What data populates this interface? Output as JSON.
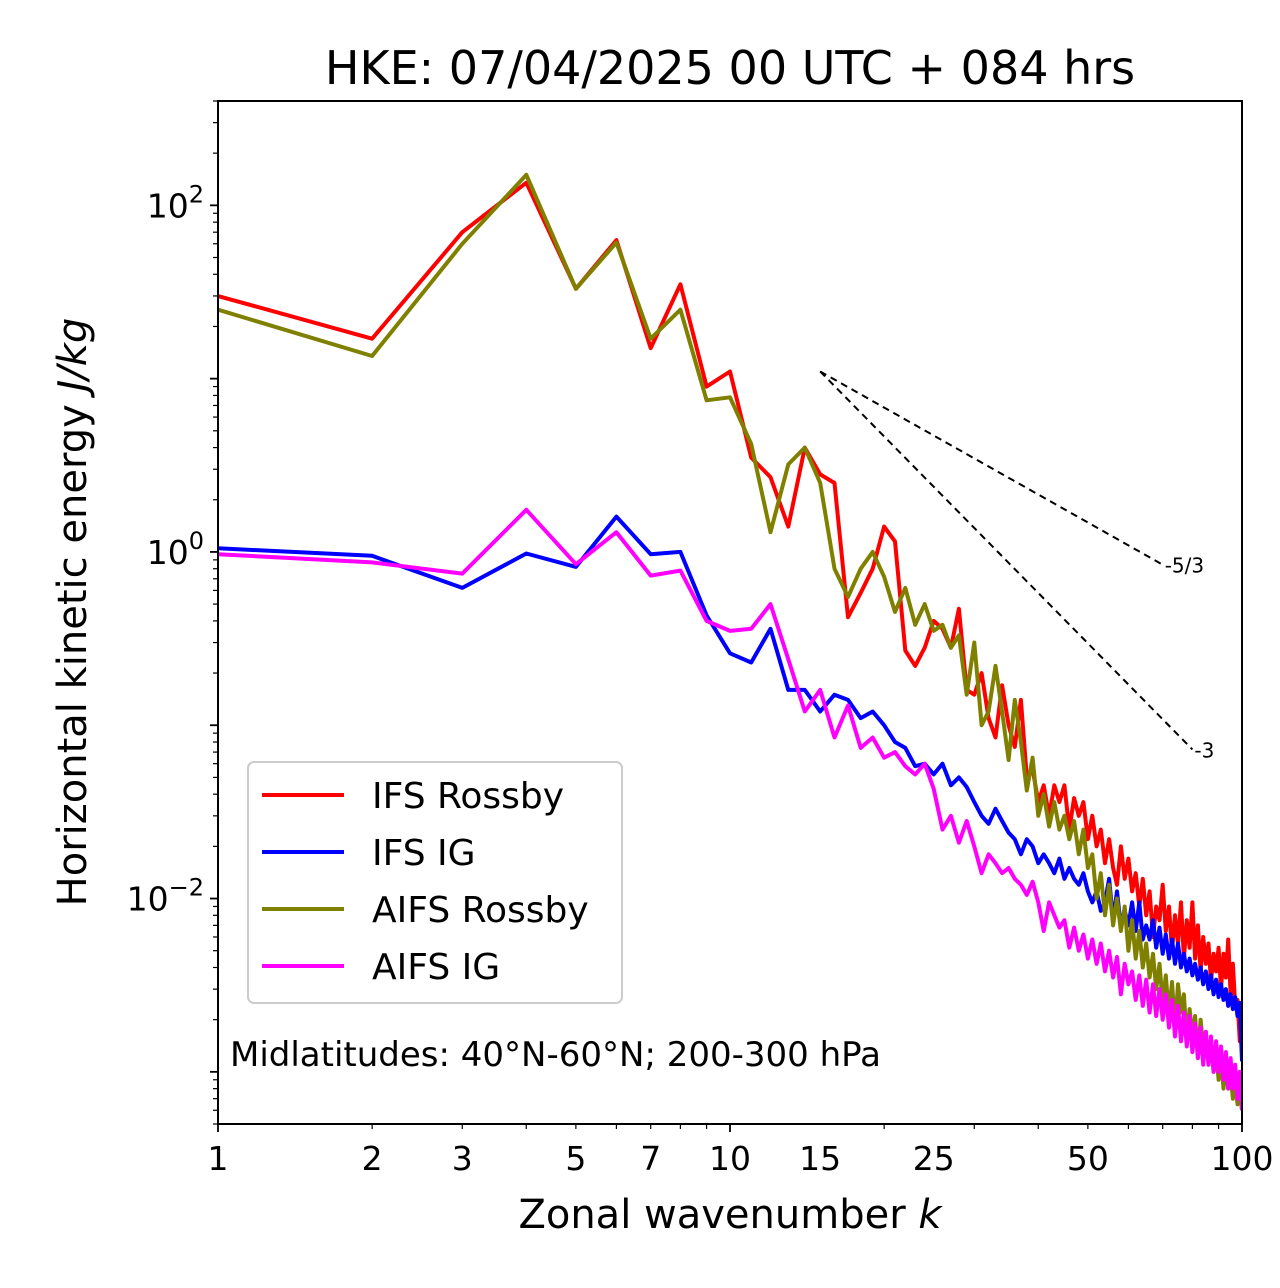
{
  "chart_data": {
    "type": "line",
    "title": "HKE: 07/04/2025 00 UTC + 084 hrs",
    "xlabel_text": "Zonal wavenumber ",
    "xlabel_var": "k",
    "ylabel_text": "Horizontal kinetic energy ",
    "ylabel_unit": "J/kg",
    "xscale": "log",
    "yscale": "log",
    "xlim": [
      1,
      100
    ],
    "ylim": [
      0.0005,
      400
    ],
    "x_ticks": [
      1,
      2,
      3,
      5,
      7,
      10,
      15,
      25,
      50,
      100
    ],
    "x_tick_labels": [
      "1",
      "2",
      "3",
      "5",
      "7",
      "10",
      "15",
      "25",
      "50",
      "100"
    ],
    "y_ticks": [
      {
        "value": 100,
        "base": "10",
        "exp": "2"
      },
      {
        "value": 1,
        "base": "10",
        "exp": "0"
      },
      {
        "value": 0.01,
        "base": "10",
        "exp": "−2"
      }
    ],
    "grid": false,
    "legend_position": "lower-left",
    "annotation": "Midlatitudes: 40°N-60°N; 200-300 hPa",
    "reference_slopes": [
      {
        "label": "-5/3",
        "slope": -1.6667,
        "x_start": 15,
        "y_start": 11,
        "x_end": 70
      },
      {
        "label": "-3",
        "slope": -3,
        "x_start": 15,
        "y_start": 11,
        "x_end": 80
      }
    ],
    "series": [
      {
        "name": "IFS Rossby",
        "color": "#ff0000",
        "x": [
          1,
          2,
          3,
          4,
          5,
          6,
          7,
          8,
          9,
          10,
          11,
          12,
          13,
          14,
          15,
          16,
          17,
          18,
          19,
          20,
          21,
          22,
          23,
          24,
          25,
          26,
          27,
          28,
          29,
          30,
          31,
          32,
          33,
          34,
          35,
          36,
          37,
          38,
          39,
          40,
          41,
          42,
          43,
          44,
          45,
          46,
          47,
          48,
          49,
          50,
          51,
          52,
          53,
          54,
          55,
          56,
          57,
          58,
          59,
          60,
          61,
          62,
          63,
          64,
          65,
          66,
          67,
          68,
          69,
          70,
          71,
          72,
          73,
          74,
          75,
          76,
          77,
          78,
          79,
          80,
          81,
          82,
          83,
          84,
          85,
          86,
          87,
          88,
          89,
          90,
          91,
          92,
          93,
          94,
          95,
          96,
          97,
          98,
          99,
          100
        ],
        "y": [
          30,
          17,
          70,
          135,
          33,
          63,
          15,
          35,
          9,
          11,
          3.5,
          2.7,
          1.4,
          4,
          2.8,
          2.5,
          0.42,
          0.58,
          0.8,
          1.4,
          1.15,
          0.27,
          0.22,
          0.28,
          0.4,
          0.36,
          0.28,
          0.47,
          0.16,
          0.15,
          0.2,
          0.11,
          0.085,
          0.17,
          0.1,
          0.075,
          0.14,
          0.05,
          0.056,
          0.036,
          0.045,
          0.03,
          0.045,
          0.036,
          0.045,
          0.025,
          0.038,
          0.03,
          0.036,
          0.022,
          0.03,
          0.02,
          0.025,
          0.016,
          0.022,
          0.015,
          0.012,
          0.02,
          0.013,
          0.017,
          0.011,
          0.014,
          0.009,
          0.013,
          0.008,
          0.011,
          0.006,
          0.009,
          0.0075,
          0.012,
          0.0065,
          0.009,
          0.005,
          0.008,
          0.0055,
          0.0095,
          0.0045,
          0.0075,
          0.0052,
          0.0095,
          0.0045,
          0.007,
          0.0038,
          0.006,
          0.0042,
          0.0055,
          0.0033,
          0.0048,
          0.0038,
          0.0052,
          0.003,
          0.0048,
          0.0035,
          0.0058,
          0.0028,
          0.0042,
          0.0024,
          0.0026,
          0.0015,
          0.0022
        ]
      },
      {
        "name": "IFS IG",
        "color": "#0000ff",
        "x": [
          1,
          2,
          3,
          4,
          5,
          6,
          7,
          8,
          9,
          10,
          11,
          12,
          13,
          14,
          15,
          16,
          17,
          18,
          19,
          20,
          21,
          22,
          23,
          24,
          25,
          26,
          27,
          28,
          29,
          30,
          31,
          32,
          33,
          34,
          35,
          36,
          37,
          38,
          39,
          40,
          41,
          42,
          43,
          44,
          45,
          46,
          47,
          48,
          49,
          50,
          51,
          52,
          53,
          54,
          55,
          56,
          57,
          58,
          59,
          60,
          61,
          62,
          63,
          64,
          65,
          66,
          67,
          68,
          69,
          70,
          71,
          72,
          73,
          74,
          75,
          76,
          77,
          78,
          79,
          80,
          81,
          82,
          83,
          84,
          85,
          86,
          87,
          88,
          89,
          90,
          91,
          92,
          93,
          94,
          95,
          96,
          97,
          98,
          99,
          100
        ],
        "y": [
          1.05,
          0.95,
          0.62,
          0.98,
          0.82,
          1.6,
          0.97,
          1.0,
          0.43,
          0.26,
          0.23,
          0.36,
          0.16,
          0.16,
          0.12,
          0.15,
          0.14,
          0.11,
          0.12,
          0.1,
          0.08,
          0.074,
          0.058,
          0.06,
          0.052,
          0.06,
          0.045,
          0.05,
          0.044,
          0.036,
          0.03,
          0.027,
          0.033,
          0.028,
          0.024,
          0.022,
          0.018,
          0.022,
          0.02,
          0.016,
          0.018,
          0.016,
          0.014,
          0.017,
          0.013,
          0.015,
          0.013,
          0.012,
          0.014,
          0.011,
          0.0095,
          0.011,
          0.0085,
          0.0095,
          0.013,
          0.0075,
          0.011,
          0.0068,
          0.0085,
          0.007,
          0.0095,
          0.0065,
          0.0095,
          0.0058,
          0.007,
          0.0058,
          0.0075,
          0.0052,
          0.0068,
          0.0048,
          0.0062,
          0.0045,
          0.0058,
          0.0042,
          0.0055,
          0.004,
          0.0048,
          0.0038,
          0.0045,
          0.0036,
          0.0042,
          0.0034,
          0.004,
          0.0032,
          0.0038,
          0.003,
          0.0036,
          0.0028,
          0.0034,
          0.0027,
          0.0032,
          0.0026,
          0.003,
          0.0024,
          0.0028,
          0.0023,
          0.0027,
          0.0021,
          0.0025,
          0.00115
        ]
      },
      {
        "name": "AIFS Rossby",
        "color": "#808000",
        "x": [
          1,
          2,
          3,
          4,
          5,
          6,
          7,
          8,
          9,
          10,
          11,
          12,
          13,
          14,
          15,
          16,
          17,
          18,
          19,
          20,
          21,
          22,
          23,
          24,
          25,
          26,
          27,
          28,
          29,
          30,
          31,
          32,
          33,
          34,
          35,
          36,
          37,
          38,
          39,
          40,
          41,
          42,
          43,
          44,
          45,
          46,
          47,
          48,
          49,
          50,
          51,
          52,
          53,
          54,
          55,
          56,
          57,
          58,
          59,
          60,
          61,
          62,
          63,
          64,
          65,
          66,
          67,
          68,
          69,
          70,
          71,
          72,
          73,
          74,
          75,
          76,
          77,
          78,
          79,
          80,
          81,
          82,
          83,
          84,
          85,
          86,
          87,
          88,
          89,
          90,
          91,
          92,
          93,
          94,
          95,
          96,
          97,
          98,
          99,
          100
        ],
        "y": [
          25,
          13.5,
          60,
          150,
          33,
          61,
          17,
          25,
          7.5,
          7.8,
          4.2,
          1.3,
          3.2,
          4,
          2.5,
          0.8,
          0.55,
          0.8,
          1,
          0.72,
          0.45,
          0.62,
          0.38,
          0.5,
          0.35,
          0.38,
          0.28,
          0.33,
          0.15,
          0.3,
          0.1,
          0.12,
          0.22,
          0.12,
          0.063,
          0.14,
          0.08,
          0.042,
          0.065,
          0.03,
          0.04,
          0.026,
          0.036,
          0.025,
          0.03,
          0.022,
          0.028,
          0.018,
          0.025,
          0.015,
          0.018,
          0.01,
          0.014,
          0.008,
          0.012,
          0.007,
          0.01,
          0.0065,
          0.009,
          0.005,
          0.0075,
          0.0045,
          0.0065,
          0.004,
          0.0055,
          0.0035,
          0.0048,
          0.003,
          0.0042,
          0.0025,
          0.0036,
          0.0021,
          0.0033,
          0.0018,
          0.0032,
          0.0022,
          0.0028,
          0.0015,
          0.0023,
          0.0016,
          0.0021,
          0.0012,
          0.002,
          0.0014,
          0.0017,
          0.0011,
          0.0015,
          0.001,
          0.0013,
          0.0009,
          0.0012,
          0.0008,
          0.0011,
          0.0008,
          0.00095,
          0.0007,
          0.0009,
          0.00065,
          0.0008,
          0.0006
        ]
      },
      {
        "name": "AIFS IG",
        "color": "#ff00ff",
        "x": [
          1,
          2,
          3,
          4,
          5,
          6,
          7,
          8,
          9,
          10,
          11,
          12,
          13,
          14,
          15,
          16,
          17,
          18,
          19,
          20,
          21,
          22,
          23,
          24,
          25,
          26,
          27,
          28,
          29,
          30,
          31,
          32,
          33,
          34,
          35,
          36,
          37,
          38,
          39,
          40,
          41,
          42,
          43,
          44,
          45,
          46,
          47,
          48,
          49,
          50,
          51,
          52,
          53,
          54,
          55,
          56,
          57,
          58,
          59,
          60,
          61,
          62,
          63,
          64,
          65,
          66,
          67,
          68,
          69,
          70,
          71,
          72,
          73,
          74,
          75,
          76,
          77,
          78,
          79,
          80,
          81,
          82,
          83,
          84,
          85,
          86,
          87,
          88,
          89,
          90,
          91,
          92,
          93,
          94,
          95,
          96,
          97,
          98,
          99,
          100
        ],
        "y": [
          0.97,
          0.87,
          0.75,
          1.75,
          0.85,
          1.3,
          0.73,
          0.78,
          0.4,
          0.35,
          0.36,
          0.5,
          0.24,
          0.12,
          0.16,
          0.085,
          0.13,
          0.074,
          0.085,
          0.065,
          0.07,
          0.058,
          0.052,
          0.06,
          0.043,
          0.025,
          0.03,
          0.021,
          0.028,
          0.02,
          0.014,
          0.018,
          0.016,
          0.014,
          0.015,
          0.013,
          0.012,
          0.0105,
          0.0125,
          0.0095,
          0.0065,
          0.0095,
          0.008,
          0.0068,
          0.0075,
          0.0052,
          0.0068,
          0.005,
          0.0062,
          0.0045,
          0.0058,
          0.0042,
          0.0055,
          0.0038,
          0.005,
          0.0035,
          0.0046,
          0.0028,
          0.0042,
          0.0032,
          0.0038,
          0.0026,
          0.0036,
          0.0024,
          0.0034,
          0.0022,
          0.0032,
          0.0021,
          0.003,
          0.002,
          0.0028,
          0.0018,
          0.0026,
          0.0016,
          0.0024,
          0.0015,
          0.0022,
          0.0014,
          0.0021,
          0.0013,
          0.0019,
          0.0012,
          0.0018,
          0.0011,
          0.0017,
          0.0011,
          0.0016,
          0.001,
          0.0015,
          0.001,
          0.0014,
          0.0009,
          0.0013,
          0.0008,
          0.0012,
          0.0008,
          0.0011,
          0.0007,
          0.001,
          0.0006
        ]
      }
    ]
  }
}
